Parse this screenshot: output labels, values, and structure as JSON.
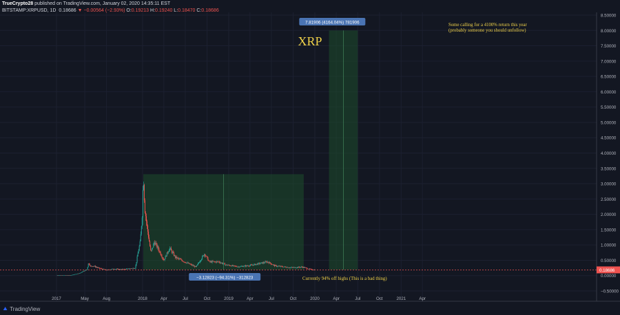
{
  "header": {
    "publisher": "TrueCrypto28",
    "published_text": "published on TradingView.com, January 02, 2020 14:35:11 EST",
    "symbol": "BITSTAMP:XRPUSD, 1D",
    "last": "0.18686",
    "change": "▼ −0.00564 (−2.93%)",
    "o_label": "O:",
    "o": "0.19213",
    "h_label": "H:",
    "h": "0.19240",
    "l_label": "L:",
    "l": "0.18470",
    "c_label": "C:",
    "c": "0.18686"
  },
  "footer": {
    "brand": "TradingView"
  },
  "colors": {
    "background": "#131722",
    "up": "#26a69a",
    "down": "#ef5350",
    "box_fill": "#1e4d2b",
    "label_bg": "#4a74b3",
    "annotation": "#f0d24a"
  },
  "chart_data": {
    "type": "candlestick",
    "title": "XRP",
    "ylim": [
      -0.6,
      8.6
    ],
    "y_ticks": [
      "8.50000",
      "8.00000",
      "7.50000",
      "7.00000",
      "6.50000",
      "6.00000",
      "5.50000",
      "5.00000",
      "4.50000",
      "4.00000",
      "3.50000",
      "3.00000",
      "2.50000",
      "2.00000",
      "1.50000",
      "1.00000",
      "0.50000",
      "0.00000",
      "−0.50000"
    ],
    "x_ticks": [
      "2017",
      "May",
      "Aug",
      "2018",
      "Apr",
      "Jul",
      "Oct",
      "2019",
      "Apr",
      "Jul",
      "Oct",
      "2020",
      "Apr",
      "Jul",
      "Oct",
      "2021",
      "Apr"
    ],
    "price_label": "0.18686",
    "price_points": [
      [
        "2017-01-01",
        0.006
      ],
      [
        "2017-03-01",
        0.009
      ],
      [
        "2017-03-25",
        0.05
      ],
      [
        "2017-04-10",
        0.08
      ],
      [
        "2017-05-10",
        0.2
      ],
      [
        "2017-05-17",
        0.42
      ],
      [
        "2017-05-25",
        0.3
      ],
      [
        "2017-06-05",
        0.32
      ],
      [
        "2017-07-01",
        0.24
      ],
      [
        "2017-08-01",
        0.18
      ],
      [
        "2017-09-01",
        0.22
      ],
      [
        "2017-10-01",
        0.2
      ],
      [
        "2017-11-01",
        0.22
      ],
      [
        "2017-12-01",
        0.25
      ],
      [
        "2017-12-14",
        0.8
      ],
      [
        "2017-12-22",
        1.1
      ],
      [
        "2017-12-30",
        2.0
      ],
      [
        "2018-01-04",
        3.3
      ],
      [
        "2018-01-10",
        2.2
      ],
      [
        "2018-01-20",
        1.6
      ],
      [
        "2018-02-05",
        0.75
      ],
      [
        "2018-02-20",
        1.1
      ],
      [
        "2018-03-10",
        0.85
      ],
      [
        "2018-04-01",
        0.5
      ],
      [
        "2018-04-25",
        0.9
      ],
      [
        "2018-05-20",
        0.6
      ],
      [
        "2018-06-20",
        0.48
      ],
      [
        "2018-08-15",
        0.28
      ],
      [
        "2018-09-21",
        0.72
      ],
      [
        "2018-10-10",
        0.45
      ],
      [
        "2018-11-20",
        0.45
      ],
      [
        "2018-12-20",
        0.35
      ],
      [
        "2019-02-10",
        0.29
      ],
      [
        "2019-04-01",
        0.33
      ],
      [
        "2019-06-15",
        0.45
      ],
      [
        "2019-07-15",
        0.32
      ],
      [
        "2019-09-20",
        0.26
      ],
      [
        "2019-11-10",
        0.28
      ],
      [
        "2019-12-15",
        0.2
      ],
      [
        "2020-01-02",
        0.187
      ]
    ],
    "drawings": {
      "drawdown_box": {
        "x": [
          "2018-01-04",
          "2019-11-15"
        ],
        "y": [
          0.187,
          3.31
        ],
        "label": "−3.12823 (−94.31%) −312823"
      },
      "target_box": {
        "x": [
          "2020-03-01",
          "2020-07-01"
        ],
        "y": [
          0.187,
          8.0
        ],
        "label": "7.81906 (4164.04%) 781906"
      },
      "note_top": [
        "Some calling for a 4100% return this year",
        "(probably someone you should unfollow)"
      ],
      "note_bottom": "Currently 94% off highs (This is a bad thing)"
    }
  }
}
